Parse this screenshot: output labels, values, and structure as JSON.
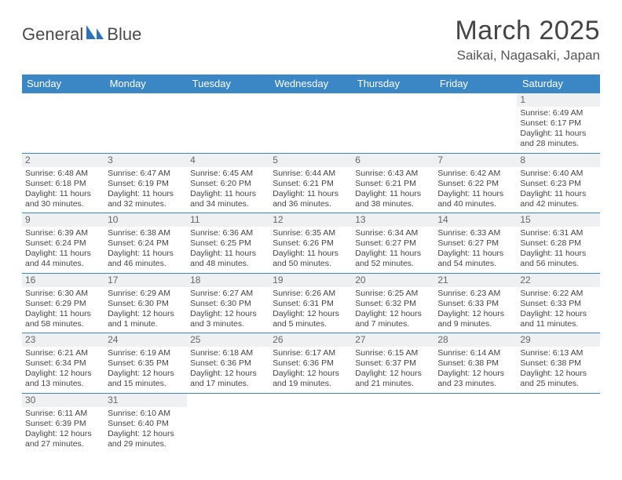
{
  "brand": {
    "word1": "General",
    "word2": "Blue",
    "logo_color": "#2f72b6"
  },
  "title": {
    "month": "March 2025",
    "location": "Saikai, Nagasaki, Japan"
  },
  "theme": {
    "header_bg": "#3b86c5",
    "header_text": "#ffffff",
    "row_divider": "#3b86c5",
    "daynum_bg": "#eef0f1",
    "text_color": "#444444",
    "title_fontsize": 34,
    "location_fontsize": 17,
    "dayheader_fontsize": 13,
    "cell_fontsize": 10.5
  },
  "calendar": {
    "type": "table",
    "columns": [
      "Sunday",
      "Monday",
      "Tuesday",
      "Wednesday",
      "Thursday",
      "Friday",
      "Saturday"
    ],
    "weeks": [
      [
        null,
        null,
        null,
        null,
        null,
        null,
        {
          "n": "1",
          "sr": "6:49 AM",
          "ss": "6:17 PM",
          "dl": "11 hours and 28 minutes."
        }
      ],
      [
        {
          "n": "2",
          "sr": "6:48 AM",
          "ss": "6:18 PM",
          "dl": "11 hours and 30 minutes."
        },
        {
          "n": "3",
          "sr": "6:47 AM",
          "ss": "6:19 PM",
          "dl": "11 hours and 32 minutes."
        },
        {
          "n": "4",
          "sr": "6:45 AM",
          "ss": "6:20 PM",
          "dl": "11 hours and 34 minutes."
        },
        {
          "n": "5",
          "sr": "6:44 AM",
          "ss": "6:21 PM",
          "dl": "11 hours and 36 minutes."
        },
        {
          "n": "6",
          "sr": "6:43 AM",
          "ss": "6:21 PM",
          "dl": "11 hours and 38 minutes."
        },
        {
          "n": "7",
          "sr": "6:42 AM",
          "ss": "6:22 PM",
          "dl": "11 hours and 40 minutes."
        },
        {
          "n": "8",
          "sr": "6:40 AM",
          "ss": "6:23 PM",
          "dl": "11 hours and 42 minutes."
        }
      ],
      [
        {
          "n": "9",
          "sr": "6:39 AM",
          "ss": "6:24 PM",
          "dl": "11 hours and 44 minutes."
        },
        {
          "n": "10",
          "sr": "6:38 AM",
          "ss": "6:24 PM",
          "dl": "11 hours and 46 minutes."
        },
        {
          "n": "11",
          "sr": "6:36 AM",
          "ss": "6:25 PM",
          "dl": "11 hours and 48 minutes."
        },
        {
          "n": "12",
          "sr": "6:35 AM",
          "ss": "6:26 PM",
          "dl": "11 hours and 50 minutes."
        },
        {
          "n": "13",
          "sr": "6:34 AM",
          "ss": "6:27 PM",
          "dl": "11 hours and 52 minutes."
        },
        {
          "n": "14",
          "sr": "6:33 AM",
          "ss": "6:27 PM",
          "dl": "11 hours and 54 minutes."
        },
        {
          "n": "15",
          "sr": "6:31 AM",
          "ss": "6:28 PM",
          "dl": "11 hours and 56 minutes."
        }
      ],
      [
        {
          "n": "16",
          "sr": "6:30 AM",
          "ss": "6:29 PM",
          "dl": "11 hours and 58 minutes."
        },
        {
          "n": "17",
          "sr": "6:29 AM",
          "ss": "6:30 PM",
          "dl": "12 hours and 1 minute."
        },
        {
          "n": "18",
          "sr": "6:27 AM",
          "ss": "6:30 PM",
          "dl": "12 hours and 3 minutes."
        },
        {
          "n": "19",
          "sr": "6:26 AM",
          "ss": "6:31 PM",
          "dl": "12 hours and 5 minutes."
        },
        {
          "n": "20",
          "sr": "6:25 AM",
          "ss": "6:32 PM",
          "dl": "12 hours and 7 minutes."
        },
        {
          "n": "21",
          "sr": "6:23 AM",
          "ss": "6:33 PM",
          "dl": "12 hours and 9 minutes."
        },
        {
          "n": "22",
          "sr": "6:22 AM",
          "ss": "6:33 PM",
          "dl": "12 hours and 11 minutes."
        }
      ],
      [
        {
          "n": "23",
          "sr": "6:21 AM",
          "ss": "6:34 PM",
          "dl": "12 hours and 13 minutes."
        },
        {
          "n": "24",
          "sr": "6:19 AM",
          "ss": "6:35 PM",
          "dl": "12 hours and 15 minutes."
        },
        {
          "n": "25",
          "sr": "6:18 AM",
          "ss": "6:36 PM",
          "dl": "12 hours and 17 minutes."
        },
        {
          "n": "26",
          "sr": "6:17 AM",
          "ss": "6:36 PM",
          "dl": "12 hours and 19 minutes."
        },
        {
          "n": "27",
          "sr": "6:15 AM",
          "ss": "6:37 PM",
          "dl": "12 hours and 21 minutes."
        },
        {
          "n": "28",
          "sr": "6:14 AM",
          "ss": "6:38 PM",
          "dl": "12 hours and 23 minutes."
        },
        {
          "n": "29",
          "sr": "6:13 AM",
          "ss": "6:38 PM",
          "dl": "12 hours and 25 minutes."
        }
      ],
      [
        {
          "n": "30",
          "sr": "6:11 AM",
          "ss": "6:39 PM",
          "dl": "12 hours and 27 minutes."
        },
        {
          "n": "31",
          "sr": "6:10 AM",
          "ss": "6:40 PM",
          "dl": "12 hours and 29 minutes."
        },
        null,
        null,
        null,
        null,
        null
      ]
    ],
    "labels": {
      "sunrise": "Sunrise:",
      "sunset": "Sunset:",
      "daylight": "Daylight:"
    }
  }
}
